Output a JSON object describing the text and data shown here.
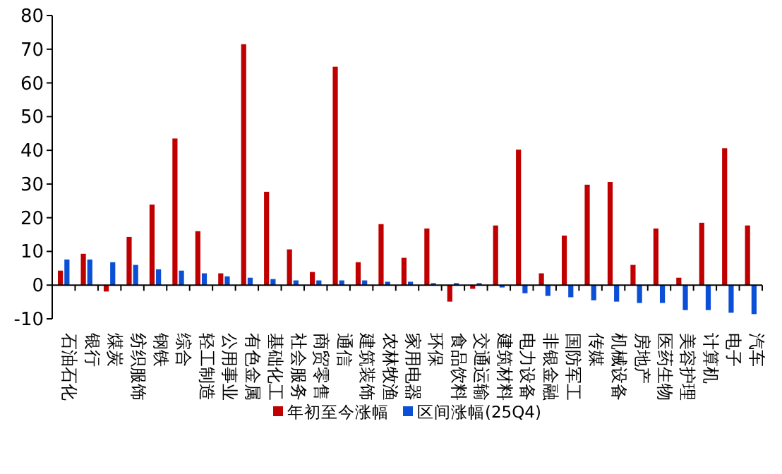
{
  "chart_data": {
    "type": "bar",
    "categories": [
      "石油石化",
      "银行",
      "煤炭",
      "纺织服饰",
      "钢铁",
      "综合",
      "轻工制造",
      "公用事业",
      "有色金属",
      "基础化工",
      "社会服务",
      "商贸零售",
      "通信",
      "建筑装饰",
      "农林牧渔",
      "家用电器",
      "环保",
      "食品饮料",
      "交通运输",
      "建筑材料",
      "电力设备",
      "非银金融",
      "国防军工",
      "传媒",
      "机械设备",
      "房地产",
      "医药生物",
      "美容护理",
      "计算机",
      "电子",
      "汽车"
    ],
    "series": [
      {
        "name": "年初至今涨幅",
        "color": "#c00000",
        "values": [
          4.3,
          9.3,
          -1.9,
          14.3,
          23.9,
          43.5,
          16.0,
          3.5,
          71.5,
          27.7,
          10.6,
          3.9,
          64.8,
          6.8,
          18.1,
          8.1,
          16.8,
          -4.9,
          -1.1,
          17.7,
          40.2,
          3.5,
          14.7,
          29.8,
          30.6,
          6.0,
          16.8,
          2.2,
          18.5,
          40.6,
          17.7
        ]
      },
      {
        "name": "区间涨幅(25Q4)",
        "color": "#0a4fd6",
        "values": [
          7.6,
          7.6,
          6.8,
          6.0,
          4.7,
          4.3,
          3.5,
          2.6,
          2.2,
          1.8,
          1.4,
          1.4,
          1.4,
          1.4,
          1.0,
          1.0,
          0.6,
          0.6,
          0.6,
          -0.7,
          -2.4,
          -3.2,
          -3.6,
          -4.5,
          -4.9,
          -5.3,
          -5.3,
          -7.4,
          -7.4,
          -8.2,
          -8.6
        ]
      }
    ],
    "ylim": [
      -10,
      80
    ],
    "yticks": [
      -10,
      0,
      10,
      20,
      30,
      40,
      50,
      60,
      70,
      80
    ],
    "legend": "bottom"
  }
}
